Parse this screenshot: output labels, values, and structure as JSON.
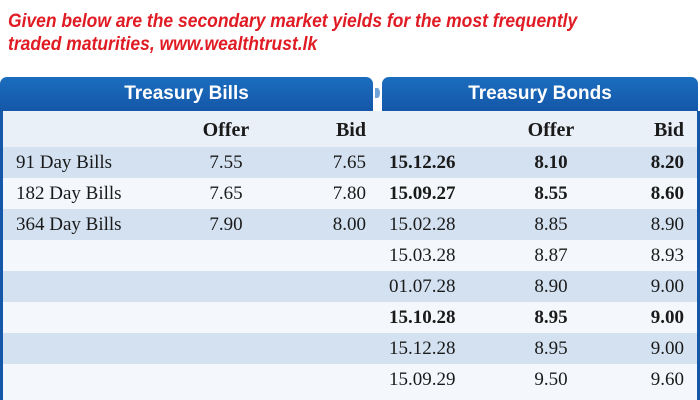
{
  "caption": {
    "line1": "Given below are the secondary market yields for the most frequently",
    "line2": "traded maturities, www.wealthtrust.lk"
  },
  "bills": {
    "title": "Treasury Bills",
    "offer_header": "Offer",
    "bid_header": "Bid",
    "rows": [
      {
        "name": "91 Day Bills",
        "offer": "7.55",
        "bid": "7.65"
      },
      {
        "name": "182 Day Bills",
        "offer": "7.65",
        "bid": "7.80"
      },
      {
        "name": "364 Day Bills",
        "offer": "7.90",
        "bid": "8.00"
      }
    ]
  },
  "bonds": {
    "title": "Treasury Bonds",
    "offer_header": "Offer",
    "bid_header": "Bid",
    "rows": [
      {
        "maturity": "15.12.26",
        "offer": "8.10",
        "bid": "8.20",
        "bold": true
      },
      {
        "maturity": "15.09.27",
        "offer": "8.55",
        "bid": "8.60",
        "bold": true
      },
      {
        "maturity": "15.02.28",
        "offer": "8.85",
        "bid": "8.90",
        "bold": false
      },
      {
        "maturity": "15.03.28",
        "offer": "8.87",
        "bid": "8.93",
        "bold": false
      },
      {
        "maturity": "01.07.28",
        "offer": "8.90",
        "bid": "9.00",
        "bold": false
      },
      {
        "maturity": "15.10.28",
        "offer": "8.95",
        "bid": "9.00",
        "bold": true
      },
      {
        "maturity": "15.12.28",
        "offer": "8.95",
        "bid": "9.00",
        "bold": false
      },
      {
        "maturity": "15.09.29",
        "offer": "9.50",
        "bid": "9.60",
        "bold": false
      }
    ]
  },
  "colors": {
    "caption": "#e01b24",
    "header_blue": "#1557a8",
    "row_shade": "#d3e1f1",
    "row_plain": "#f4f8fc"
  }
}
